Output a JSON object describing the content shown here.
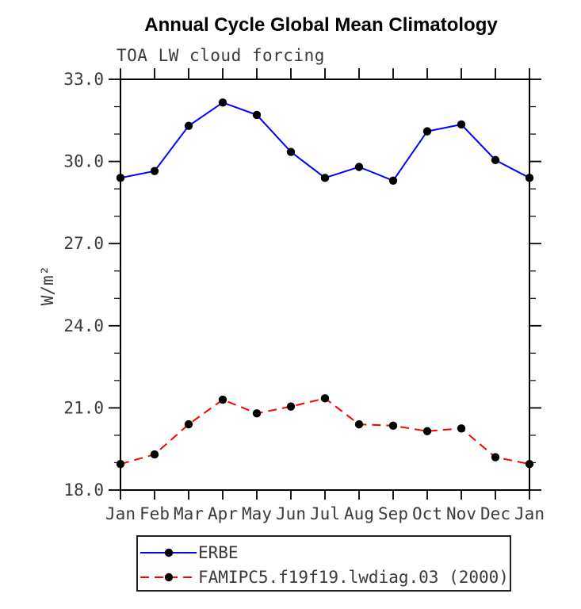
{
  "chart_data": {
    "type": "line",
    "title": "Annual Cycle Global Mean Climatology",
    "subtitle": "TOA LW cloud forcing",
    "xlabel": "",
    "ylabel": "W/m²",
    "ylim": [
      18.0,
      33.0
    ],
    "yticks": [
      18.0,
      21.0,
      24.0,
      27.0,
      30.0,
      33.0
    ],
    "ytick_labels": [
      "18.0",
      "21.0",
      "24.0",
      "27.0",
      "30.0",
      "33.0"
    ],
    "ytick_minor_step": 1.0,
    "categories": [
      "Jan",
      "Feb",
      "Mar",
      "Apr",
      "May",
      "Jun",
      "Jul",
      "Aug",
      "Sep",
      "Oct",
      "Nov",
      "Dec",
      "Jan"
    ],
    "grid": false,
    "legend_position": "below-left",
    "axis_color": "#000000",
    "text_color": "#3a3a3a",
    "marker": "filled-circle",
    "marker_color": "#000000",
    "series": [
      {
        "name": "ERBE",
        "color": "#0000ff",
        "line_style": "solid",
        "dash": "",
        "values": [
          29.4,
          29.65,
          31.3,
          32.15,
          31.7,
          30.35,
          29.4,
          29.8,
          29.3,
          31.1,
          31.35,
          30.05,
          29.4
        ]
      },
      {
        "name": "FAMIPC5.f19f19.lwdiag.03 (2000)",
        "color": "#ff0000",
        "line_style": "dashed",
        "dash": "11 7",
        "values": [
          18.95,
          19.3,
          20.4,
          21.3,
          20.8,
          21.05,
          21.35,
          20.4,
          20.35,
          20.15,
          20.25,
          19.2,
          18.95
        ]
      }
    ]
  }
}
